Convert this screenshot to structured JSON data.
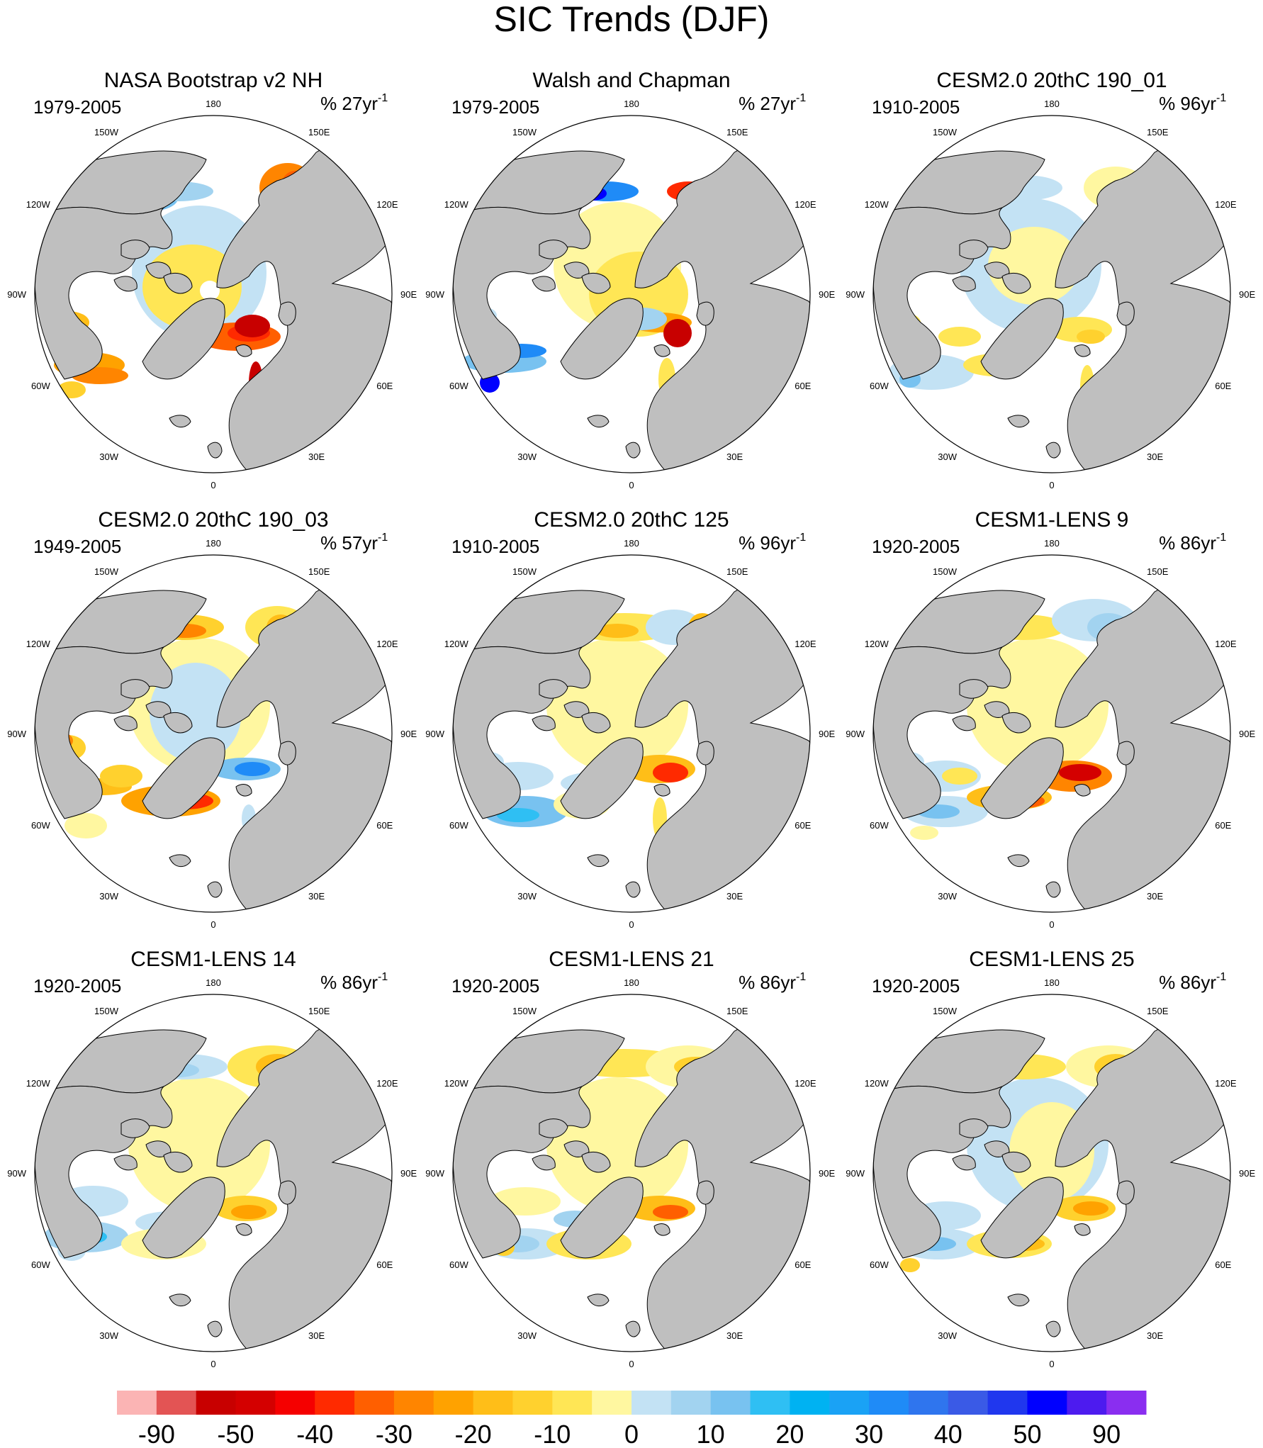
{
  "title": "SIC Trends (DJF)",
  "longitude_labels": {
    "top": "180",
    "top_left": "150W",
    "top_right": "150E",
    "upper_left": "120W",
    "upper_right": "120E",
    "left": "90W",
    "right": "90E",
    "lower_left": "60W",
    "lower_right": "60E",
    "bottom_left": "30W",
    "bottom_right": "30E",
    "bottom": "0"
  },
  "panels": [
    {
      "title": "NASA Bootstrap v2 NH",
      "period": "1979-2005",
      "units_prefix": "% 27yr",
      "units_exp": "-1"
    },
    {
      "title": "Walsh and Chapman",
      "period": "1979-2005",
      "units_prefix": "% 27yr",
      "units_exp": "-1"
    },
    {
      "title": "CESM2.0 20thC 190_01",
      "period": "1910-2005",
      "units_prefix": "% 96yr",
      "units_exp": "-1"
    },
    {
      "title": "CESM2.0 20thC 190_03",
      "period": "1949-2005",
      "units_prefix": "% 57yr",
      "units_exp": "-1"
    },
    {
      "title": "CESM2.0 20thC 125",
      "period": "1910-2005",
      "units_prefix": "% 96yr",
      "units_exp": "-1"
    },
    {
      "title": "CESM1-LENS 9",
      "period": "1920-2005",
      "units_prefix": "% 86yr",
      "units_exp": "-1"
    },
    {
      "title": "CESM1-LENS 14",
      "period": "1920-2005",
      "units_prefix": "% 86yr",
      "units_exp": "-1"
    },
    {
      "title": "CESM1-LENS 21",
      "period": "1920-2005",
      "units_prefix": "% 86yr",
      "units_exp": "-1"
    },
    {
      "title": "CESM1-LENS 25",
      "period": "1920-2005",
      "units_prefix": "% 86yr",
      "units_exp": "-1"
    }
  ],
  "colorbar": {
    "colors": [
      "#fbb4b4",
      "#e35454",
      "#c80000",
      "#d40000",
      "#f50000",
      "#ff2a00",
      "#ff5f00",
      "#ff8500",
      "#ffa200",
      "#ffbe18",
      "#ffd12e",
      "#ffe655",
      "#fff7a0",
      "#c3e2f4",
      "#a2d3f0",
      "#78c2f0",
      "#2fbff3",
      "#00b2f2",
      "#1aa2f5",
      "#1f8bf7",
      "#2f75ee",
      "#3a5ae6",
      "#2037ee",
      "#0000ff",
      "#4d1bef",
      "#8a2ef0"
    ],
    "labels": [
      "-90",
      "-50",
      "-40",
      "-30",
      "-20",
      "-10",
      "0",
      "10",
      "20",
      "30",
      "40",
      "50",
      "90"
    ]
  },
  "colors": {
    "land": "#bfbfbf",
    "coast": "#000000",
    "circle": "#000000"
  }
}
